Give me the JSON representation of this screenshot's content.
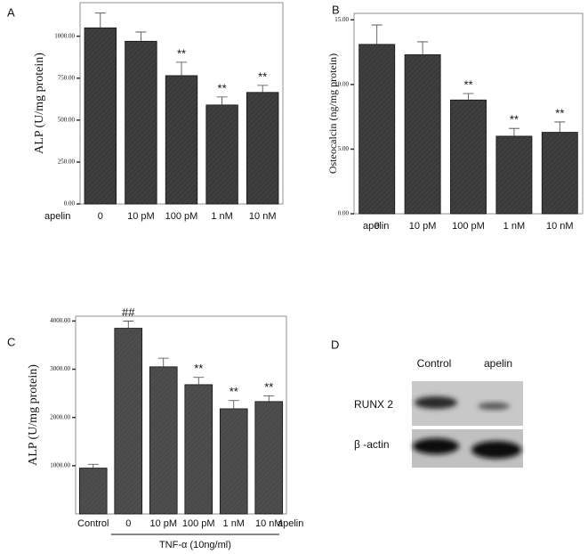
{
  "chart_data": [
    {
      "type": "bar",
      "panel_label": "A",
      "y_label": "ALP (U/mg protein)",
      "x_label": "apelin",
      "categories": [
        "0",
        "10 pM",
        "100 pM",
        "1 nM",
        "10 nM"
      ],
      "values": [
        1050,
        970,
        765,
        590,
        665
      ],
      "errors": [
        88,
        55,
        80,
        48,
        42
      ],
      "bar_labels": [
        null,
        null,
        "**",
        "**",
        "**"
      ],
      "color": "#3a3a3a",
      "ylim": [
        0,
        1200
      ],
      "yticks": [
        {
          "value": 0,
          "label": "0.00"
        },
        {
          "value": 250,
          "label": "250.00"
        },
        {
          "value": 500,
          "label": "500.00"
        },
        {
          "value": 750,
          "label": "750.00"
        },
        {
          "value": 1000,
          "label": "1000.00"
        }
      ]
    },
    {
      "type": "bar",
      "panel_label": "B",
      "y_label": "Osteocalcin (ng/mg protein)",
      "x_label": "apelin",
      "categories": [
        "0",
        "10 pM",
        "100 pM",
        "1 nM",
        "10 nM"
      ],
      "values": [
        13.1,
        12.3,
        8.8,
        6.0,
        6.3
      ],
      "errors": [
        1.5,
        1.0,
        0.5,
        0.6,
        0.8
      ],
      "bar_labels": [
        null,
        null,
        "**",
        "**",
        "**"
      ],
      "color": "#3a3a3a",
      "ylim": [
        0,
        15.5
      ],
      "yticks": [
        {
          "value": 0,
          "label": "0.00"
        },
        {
          "value": 5,
          "label": "5.00"
        },
        {
          "value": 10,
          "label": "10.00"
        },
        {
          "value": 15,
          "label": "15.00"
        }
      ]
    },
    {
      "type": "bar",
      "panel_label": "C",
      "y_label": "ALP (U/mg protein)",
      "x_label": "apelin",
      "group_label": "TNF-α (10ng/ml)",
      "categories": [
        "Control",
        "0",
        "10 pM",
        "100 pM",
        "1 nM",
        "10 nM"
      ],
      "values": [
        950,
        3850,
        3050,
        2680,
        2180,
        2330
      ],
      "errors": [
        80,
        150,
        180,
        150,
        170,
        120
      ],
      "bar_labels": [
        null,
        "##",
        null,
        "**",
        "**",
        "**"
      ],
      "color": "#4a4a4a",
      "ylim": [
        0,
        4100
      ],
      "yticks": [
        {
          "value": 1000,
          "label": "1000.00"
        },
        {
          "value": 2000,
          "label": "2000.00"
        },
        {
          "value": 3000,
          "label": "3000.00"
        },
        {
          "value": 4000,
          "label": "4000.00"
        }
      ]
    }
  ],
  "blot": {
    "panel_label": "D",
    "lanes": [
      "Control",
      "apelin"
    ],
    "rows": [
      "RUNX 2",
      "β -actin"
    ]
  }
}
